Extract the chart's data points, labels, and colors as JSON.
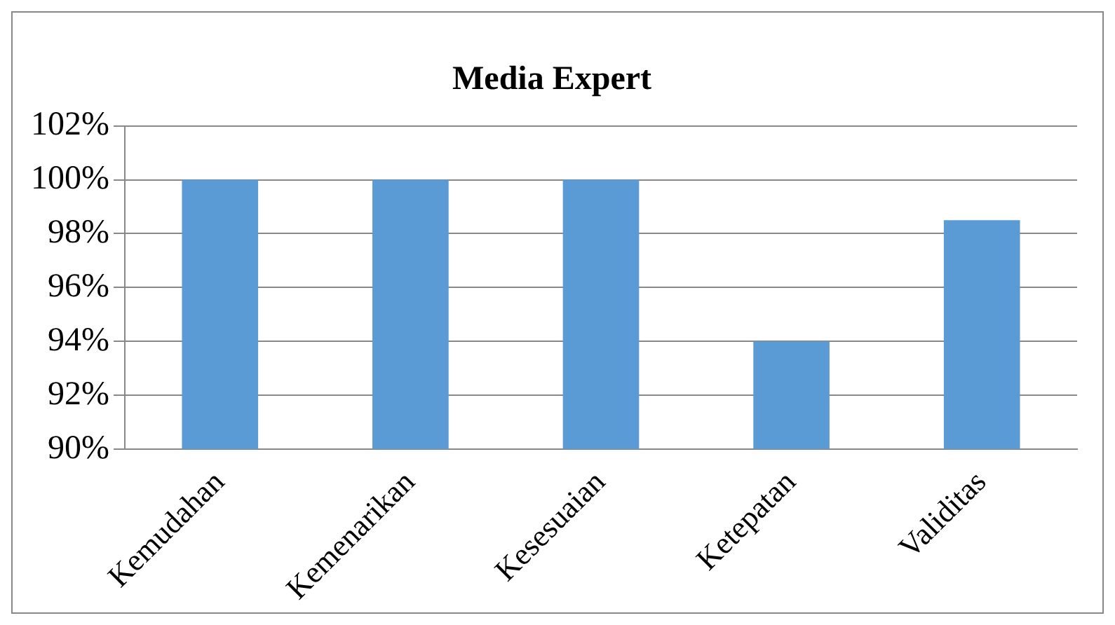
{
  "chart_data": {
    "type": "bar",
    "title": "Media Expert",
    "categories": [
      "Kemudahan",
      "Kemenarikan",
      "Kesesuaian",
      "Ketepatan",
      "Validitas"
    ],
    "values": [
      100,
      100,
      100,
      94,
      98.5
    ],
    "color": "#5b9bd5",
    "ylim": [
      90,
      102
    ],
    "yticks": [
      {
        "value": 90,
        "label": "90%"
      },
      {
        "value": 92,
        "label": "92%"
      },
      {
        "value": 94,
        "label": "94%"
      },
      {
        "value": 96,
        "label": "96%"
      },
      {
        "value": 98,
        "label": "98%"
      },
      {
        "value": 100,
        "label": "100%"
      },
      {
        "value": 102,
        "label": "102%"
      }
    ],
    "grid": "y",
    "legend": false
  }
}
